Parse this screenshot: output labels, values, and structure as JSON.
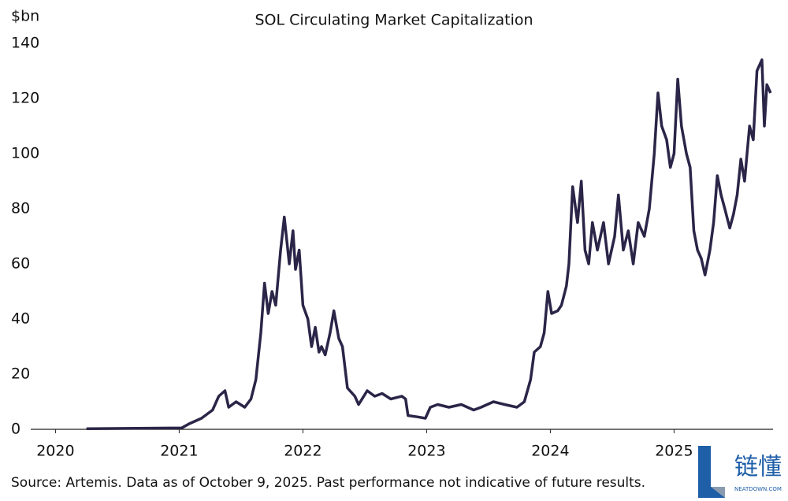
{
  "chart_data": {
    "type": "line",
    "title": "SOL Circulating Market Capitalization",
    "y_unit_label": "$bn",
    "source": "Source: Artemis. Data as of October 9, 2025. Past performance not indicative of future results.",
    "xlim": [
      2019.8,
      2025.8
    ],
    "xticks": [
      2020,
      2021,
      2022,
      2023,
      2024,
      2025
    ],
    "ylim": [
      0,
      140
    ],
    "yticks": [
      0,
      20,
      40,
      60,
      80,
      100,
      120,
      140
    ],
    "grid": false,
    "series": [
      {
        "name": "SOL",
        "color": "#2b2548",
        "x": [
          2020.25,
          2021.02,
          2021.08,
          2021.18,
          2021.27,
          2021.32,
          2021.37,
          2021.4,
          2021.46,
          2021.53,
          2021.58,
          2021.62,
          2021.66,
          2021.69,
          2021.72,
          2021.75,
          2021.78,
          2021.82,
          2021.85,
          2021.89,
          2021.92,
          2021.94,
          2021.97,
          2022.0,
          2022.04,
          2022.07,
          2022.1,
          2022.13,
          2022.15,
          2022.18,
          2022.22,
          2022.25,
          2022.29,
          2022.32,
          2022.36,
          2022.42,
          2022.45,
          2022.52,
          2022.58,
          2022.64,
          2022.71,
          2022.8,
          2022.83,
          2022.85,
          2022.93,
          2022.99,
          2023.03,
          2023.09,
          2023.18,
          2023.28,
          2023.38,
          2023.44,
          2023.54,
          2023.63,
          2023.73,
          2023.79,
          2023.84,
          2023.87,
          2023.92,
          2023.95,
          2023.98,
          2024.01,
          2024.06,
          2024.09,
          2024.13,
          2024.15,
          2024.18,
          2024.22,
          2024.25,
          2024.28,
          2024.31,
          2024.34,
          2024.38,
          2024.43,
          2024.47,
          2024.52,
          2024.55,
          2024.59,
          2024.63,
          2024.67,
          2024.71,
          2024.76,
          2024.8,
          2024.84,
          2024.87,
          2024.9,
          2024.94,
          2024.97,
          2025.0,
          2025.03,
          2025.06,
          2025.1,
          2025.13,
          2025.16,
          2025.19,
          2025.22,
          2025.25,
          2025.29,
          2025.32,
          2025.35,
          2025.38,
          2025.41,
          2025.45,
          2025.48,
          2025.51,
          2025.54,
          2025.57,
          2025.61,
          2025.64,
          2025.67,
          2025.71,
          2025.73,
          2025.75,
          2025.78
        ],
        "values": [
          0.2,
          0.5,
          2,
          4,
          7,
          12,
          14,
          8,
          10,
          8,
          11,
          18,
          35,
          53,
          42,
          50,
          45,
          65,
          77,
          60,
          72,
          58,
          65,
          45,
          40,
          30,
          37,
          28,
          30,
          27,
          35,
          43,
          33,
          30,
          15,
          12,
          9,
          14,
          12,
          13,
          11,
          12,
          11,
          5,
          4.5,
          4,
          8,
          9,
          8,
          9,
          7,
          8,
          10,
          9,
          8,
          10,
          18,
          28,
          30,
          35,
          50,
          42,
          43,
          45,
          52,
          60,
          88,
          75,
          90,
          65,
          60,
          75,
          65,
          75,
          60,
          70,
          85,
          65,
          72,
          60,
          75,
          70,
          80,
          100,
          122,
          110,
          105,
          95,
          100,
          127,
          110,
          100,
          95,
          72,
          65,
          62,
          56,
          65,
          75,
          92,
          85,
          80,
          73,
          78,
          85,
          98,
          90,
          110,
          105,
          130,
          134,
          110,
          125,
          122
        ]
      }
    ]
  },
  "watermark": {
    "name": "链懂",
    "site": "NEATDOWN.COM"
  }
}
